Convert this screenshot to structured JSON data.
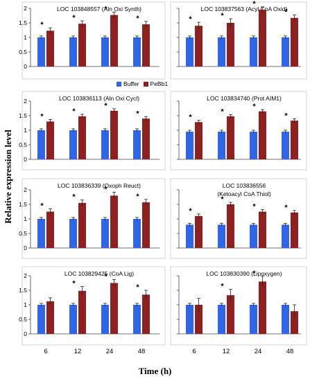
{
  "figure": {
    "ylabel": "Relative expression level",
    "xlabel": "Time (h)",
    "legend": [
      {
        "name": "Buffer",
        "color": "#2f66e8"
      },
      {
        "name": "PeBb1",
        "color": "#8e2020"
      }
    ],
    "x_tick_labels": [
      "6",
      "12",
      "24",
      "48"
    ]
  },
  "chart_data": [
    {
      "type": "bar",
      "title": "LOC 103848557 (Aln Oxi Synth)",
      "subtitle": "",
      "categories": [
        "6",
        "12",
        "24",
        "48"
      ],
      "series": [
        {
          "name": "Buffer",
          "values": [
            1.0,
            1.0,
            1.0,
            1.0
          ],
          "errors": [
            0.05,
            0.05,
            0.05,
            0.05
          ]
        },
        {
          "name": "PeBb1",
          "values": [
            1.23,
            1.47,
            1.77,
            1.45
          ],
          "errors": [
            0.1,
            0.1,
            0.1,
            0.1
          ]
        }
      ],
      "significant": [
        true,
        true,
        true,
        true
      ],
      "ylim": [
        0,
        2
      ],
      "yticks": [
        "0",
        "0.5",
        "1",
        "1.5",
        "2"
      ],
      "show_xticks": false
    },
    {
      "type": "bar",
      "title": "LOC 103837563 (Acyl CoA Oxid)",
      "subtitle": "",
      "categories": [
        "6",
        "12",
        "24",
        "48"
      ],
      "series": [
        {
          "name": "Buffer",
          "values": [
            1.0,
            1.0,
            1.0,
            1.0
          ],
          "errors": [
            0.05,
            0.05,
            0.05,
            0.05
          ]
        },
        {
          "name": "PeBb1",
          "values": [
            1.4,
            1.5,
            1.95,
            1.67
          ],
          "errors": [
            0.12,
            0.14,
            0.1,
            0.1
          ]
        }
      ],
      "significant": [
        true,
        true,
        true,
        true
      ],
      "ylim": [
        0,
        2
      ],
      "yticks": [],
      "show_xticks": false
    },
    {
      "type": "bar",
      "title": "LOC 103836113 (Aln Oxi Cycl)",
      "subtitle": "",
      "categories": [
        "6",
        "12",
        "24",
        "48"
      ],
      "series": [
        {
          "name": "Buffer",
          "values": [
            1.0,
            1.0,
            1.0,
            1.0
          ],
          "errors": [
            0.05,
            0.05,
            0.05,
            0.05
          ]
        },
        {
          "name": "PeBb1",
          "values": [
            1.3,
            1.48,
            1.67,
            1.4
          ],
          "errors": [
            0.07,
            0.07,
            0.07,
            0.07
          ]
        }
      ],
      "significant": [
        true,
        true,
        true,
        true
      ],
      "ylim": [
        0,
        2
      ],
      "yticks": [
        "0",
        "0.5",
        "1",
        "1.5",
        "2"
      ],
      "show_xticks": false
    },
    {
      "type": "bar",
      "title": "LOC 103834740 (Prot AIM1)",
      "subtitle": "",
      "categories": [
        "6",
        "12",
        "24",
        "48"
      ],
      "series": [
        {
          "name": "Buffer",
          "values": [
            0.95,
            0.95,
            0.95,
            0.95
          ],
          "errors": [
            0.05,
            0.05,
            0.05,
            0.05
          ]
        },
        {
          "name": "PeBb1",
          "values": [
            1.28,
            1.48,
            1.65,
            1.33
          ],
          "errors": [
            0.06,
            0.06,
            0.06,
            0.06
          ]
        }
      ],
      "significant": [
        true,
        true,
        true,
        true
      ],
      "ylim": [
        0,
        2
      ],
      "yticks": [],
      "show_xticks": false
    },
    {
      "type": "bar",
      "title": "LOC 103836339 (Oxoph Reuct)",
      "subtitle": "",
      "categories": [
        "6",
        "12",
        "24",
        "48"
      ],
      "series": [
        {
          "name": "Buffer",
          "values": [
            1.0,
            1.0,
            1.0,
            1.0
          ],
          "errors": [
            0.05,
            0.05,
            0.05,
            0.05
          ]
        },
        {
          "name": "PeBb1",
          "values": [
            1.25,
            1.55,
            1.8,
            1.57
          ],
          "errors": [
            0.1,
            0.1,
            0.12,
            0.1
          ]
        }
      ],
      "significant": [
        true,
        true,
        true,
        true
      ],
      "ylim": [
        0,
        2
      ],
      "yticks": [
        "0",
        "0.5",
        "1",
        "1.5",
        "2"
      ],
      "show_xticks": false
    },
    {
      "type": "bar",
      "title": "LOC 103836556",
      "subtitle": "(Ketoacyl CoA Thiol)",
      "categories": [
        "6",
        "12",
        "24",
        "48"
      ],
      "series": [
        {
          "name": "Buffer",
          "values": [
            0.8,
            0.8,
            0.8,
            0.8
          ],
          "errors": [
            0.05,
            0.05,
            0.05,
            0.05
          ]
        },
        {
          "name": "PeBb1",
          "values": [
            1.1,
            1.5,
            1.25,
            1.22
          ],
          "errors": [
            0.07,
            0.07,
            0.07,
            0.07
          ]
        }
      ],
      "significant": [
        true,
        true,
        true,
        true
      ],
      "ylim": [
        0,
        2
      ],
      "yticks": [],
      "show_xticks": false
    },
    {
      "type": "bar",
      "title": "LOC 103829425 (CoA Lig)",
      "subtitle": "",
      "categories": [
        "6",
        "12",
        "24",
        "48"
      ],
      "series": [
        {
          "name": "Buffer",
          "values": [
            1.0,
            1.0,
            1.0,
            1.0
          ],
          "errors": [
            0.05,
            0.05,
            0.05,
            0.05
          ]
        },
        {
          "name": "PeBb1",
          "values": [
            1.12,
            1.48,
            1.75,
            1.35
          ],
          "errors": [
            0.12,
            0.15,
            0.12,
            0.15
          ]
        }
      ],
      "significant": [
        false,
        true,
        true,
        true
      ],
      "ylim": [
        0,
        2
      ],
      "yticks": [
        "0",
        "0.5",
        "1",
        "1.5",
        "2"
      ],
      "show_xticks": true
    },
    {
      "type": "bar",
      "title": "LOC 103830390 (Lipoxygen)",
      "subtitle": "",
      "categories": [
        "6",
        "12",
        "24",
        "48"
      ],
      "series": [
        {
          "name": "Buffer",
          "values": [
            1.0,
            1.0,
            1.0,
            1.0
          ],
          "errors": [
            0.05,
            0.05,
            0.05,
            0.05
          ]
        },
        {
          "name": "PeBb1",
          "values": [
            1.0,
            1.33,
            1.8,
            0.78
          ],
          "errors": [
            0.22,
            0.2,
            0.18,
            0.22
          ]
        }
      ],
      "significant": [
        false,
        true,
        true,
        false
      ],
      "ylim": [
        0,
        2
      ],
      "yticks": [],
      "show_xticks": true
    }
  ]
}
